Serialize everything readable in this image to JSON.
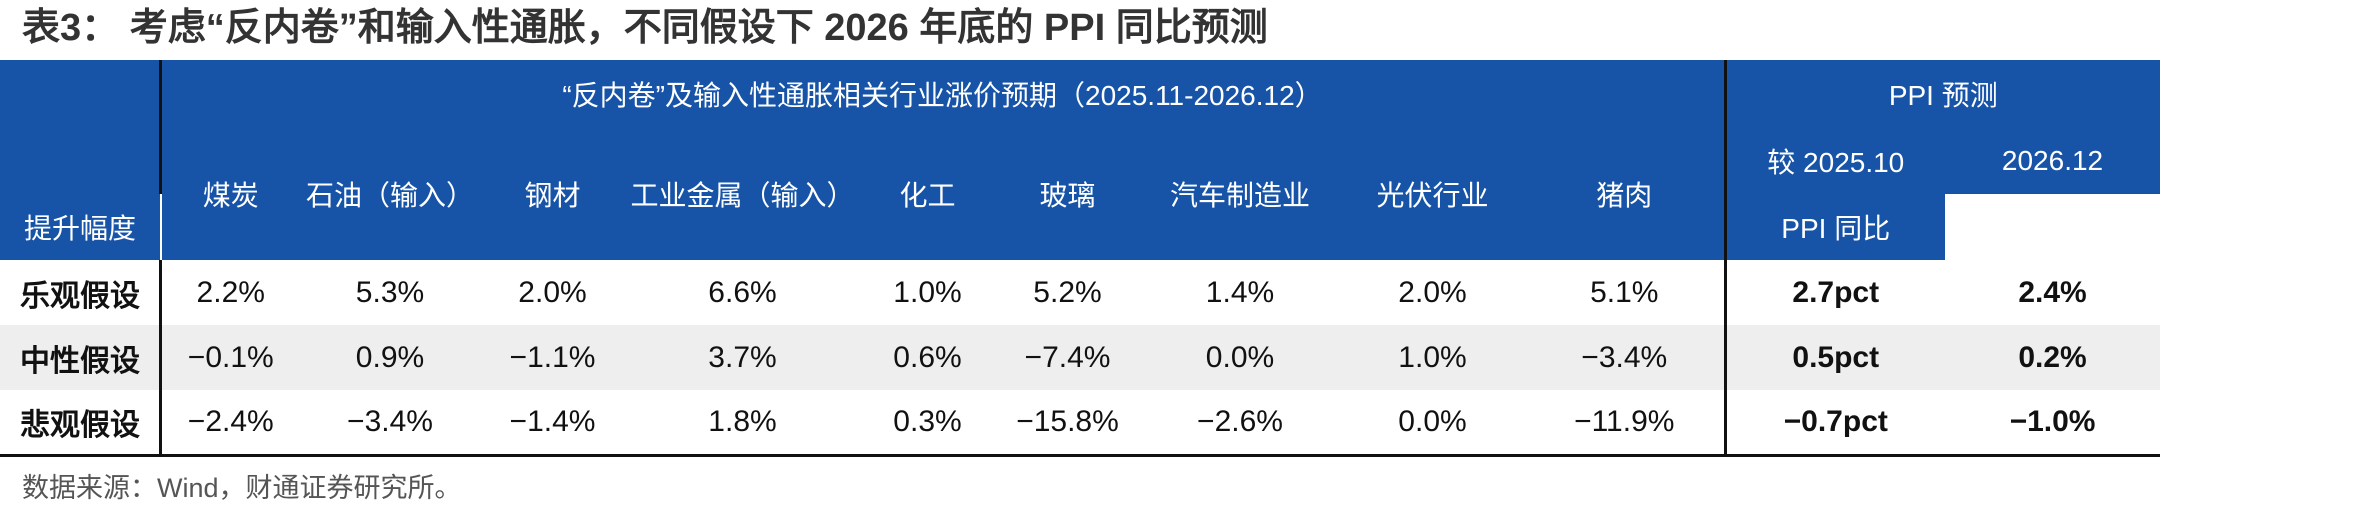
{
  "title": "表3： 考虑“反内卷”和输入性通胀，不同假设下 2026 年底的 PPI 同比预测",
  "header": {
    "group_left": "“反内卷”及输入性通胀相关行业涨价预期（2025.11-2026.12）",
    "group_right": "PPI 预测",
    "columns": [
      "煤炭",
      "石油（输入）",
      "钢材",
      "工业金属（输入）",
      "化工",
      "玻璃",
      "汽车制造业",
      "光伏行业",
      "猪肉"
    ],
    "ppi_col1_line1": "较 2025.10",
    "ppi_col1_line2": "提升幅度",
    "ppi_col2_line1": "2026.12",
    "ppi_col2_line2": "PPI 同比"
  },
  "rows": [
    {
      "label": "乐观假设",
      "values": [
        "2.2%",
        "5.3%",
        "2.0%",
        "6.6%",
        "1.0%",
        "5.2%",
        "1.4%",
        "2.0%",
        "5.1%"
      ],
      "ppi_change": "2.7pct",
      "ppi_yoy": "2.4%"
    },
    {
      "label": "中性假设",
      "values": [
        "−0.1%",
        "0.9%",
        "−1.1%",
        "3.7%",
        "0.6%",
        "−7.4%",
        "0.0%",
        "1.0%",
        "−3.4%"
      ],
      "ppi_change": "0.5pct",
      "ppi_yoy": "0.2%"
    },
    {
      "label": "悲观假设",
      "values": [
        "−2.4%",
        "−3.4%",
        "−1.4%",
        "1.8%",
        "0.3%",
        "−15.8%",
        "−2.6%",
        "0.0%",
        "−11.9%"
      ],
      "ppi_change": "−0.7pct",
      "ppi_yoy": "−1.0%"
    }
  ],
  "source": "数据来源：Wind，财通证券研究所。",
  "colors": {
    "header_bg": "#1754a8",
    "header_text": "#ffffff",
    "stripe": "#eeeeee"
  }
}
